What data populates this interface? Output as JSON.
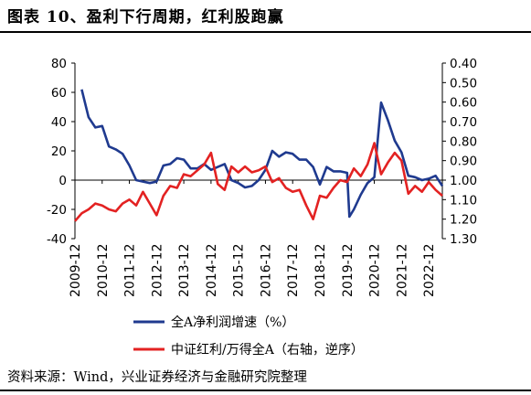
{
  "header": {
    "title": "图表 10、盈利下行周期，红利股跑赢"
  },
  "source": "资料来源：Wind，兴业证券经济与金融研究院整理",
  "chart_data": {
    "type": "line",
    "legend_position": "bottom",
    "grid": false,
    "x_axis": {
      "ticks": [
        "2009-12",
        "2010-12",
        "2011-12",
        "2012-12",
        "2013-12",
        "2014-12",
        "2015-12",
        "2016-12",
        "2017-12",
        "2018-12",
        "2019-12",
        "2020-12",
        "2021-12",
        "2022-12"
      ],
      "range": [
        "2009-12",
        "2023-06"
      ]
    },
    "left_axis": {
      "ylim": [
        -40,
        80
      ],
      "ticks": [
        -40,
        -20,
        0,
        20,
        40,
        60,
        80
      ]
    },
    "right_axis": {
      "ylim": [
        1.3,
        0.4
      ],
      "inverted": true,
      "ticks": [
        "0.40",
        "0.50",
        "0.60",
        "0.70",
        "0.80",
        "0.90",
        "1.00",
        "1.10",
        "1.20",
        "1.30"
      ]
    },
    "series": [
      {
        "name": "全A净利润增速（%）",
        "axis": "left",
        "color": "#1f3a8f",
        "points": [
          [
            "2010-03",
            62
          ],
          [
            "2010-06",
            43
          ],
          [
            "2010-09",
            36
          ],
          [
            "2010-12",
            37
          ],
          [
            "2011-03",
            23
          ],
          [
            "2011-06",
            21
          ],
          [
            "2011-09",
            18
          ],
          [
            "2011-12",
            10
          ],
          [
            "2012-03",
            0
          ],
          [
            "2012-06",
            -1
          ],
          [
            "2012-09",
            -2
          ],
          [
            "2012-12",
            -1
          ],
          [
            "2013-03",
            10
          ],
          [
            "2013-06",
            11
          ],
          [
            "2013-09",
            15
          ],
          [
            "2013-12",
            14
          ],
          [
            "2014-03",
            8
          ],
          [
            "2014-06",
            8
          ],
          [
            "2014-09",
            11
          ],
          [
            "2014-12",
            7
          ],
          [
            "2015-03",
            9
          ],
          [
            "2015-06",
            11
          ],
          [
            "2015-09",
            0
          ],
          [
            "2015-12",
            -2
          ],
          [
            "2016-03",
            -5
          ],
          [
            "2016-06",
            -4
          ],
          [
            "2016-09",
            0
          ],
          [
            "2016-12",
            7
          ],
          [
            "2017-03",
            20
          ],
          [
            "2017-06",
            16
          ],
          [
            "2017-09",
            19
          ],
          [
            "2017-12",
            18
          ],
          [
            "2018-03",
            14
          ],
          [
            "2018-06",
            14
          ],
          [
            "2018-09",
            9
          ],
          [
            "2018-12",
            -3
          ],
          [
            "2019-03",
            9
          ],
          [
            "2019-06",
            6
          ],
          [
            "2019-09",
            6
          ],
          [
            "2019-12",
            5
          ],
          [
            "2020-01",
            -25
          ],
          [
            "2020-03",
            -20
          ],
          [
            "2020-06",
            -10
          ],
          [
            "2020-09",
            -2
          ],
          [
            "2020-12",
            2
          ],
          [
            "2021-03",
            53
          ],
          [
            "2021-06",
            41
          ],
          [
            "2021-09",
            27
          ],
          [
            "2021-12",
            19
          ],
          [
            "2022-03",
            3
          ],
          [
            "2022-06",
            2
          ],
          [
            "2022-09",
            0
          ],
          [
            "2022-12",
            1
          ],
          [
            "2023-03",
            3
          ],
          [
            "2023-06",
            -4
          ]
        ]
      },
      {
        "name": "中证红利/万得全A（右轴，逆序）",
        "axis": "right",
        "color": "#e32222",
        "points": [
          [
            "2009-12",
            1.21
          ],
          [
            "2010-03",
            1.17
          ],
          [
            "2010-06",
            1.15
          ],
          [
            "2010-09",
            1.12
          ],
          [
            "2010-12",
            1.13
          ],
          [
            "2011-03",
            1.15
          ],
          [
            "2011-06",
            1.16
          ],
          [
            "2011-09",
            1.12
          ],
          [
            "2011-12",
            1.1
          ],
          [
            "2012-03",
            1.13
          ],
          [
            "2012-06",
            1.06
          ],
          [
            "2012-09",
            1.12
          ],
          [
            "2012-12",
            1.18
          ],
          [
            "2013-03",
            1.08
          ],
          [
            "2013-06",
            1.03
          ],
          [
            "2013-09",
            1.04
          ],
          [
            "2013-12",
            0.97
          ],
          [
            "2014-03",
            0.98
          ],
          [
            "2014-06",
            0.95
          ],
          [
            "2014-09",
            0.92
          ],
          [
            "2014-12",
            0.86
          ],
          [
            "2015-03",
            1.02
          ],
          [
            "2015-06",
            1.05
          ],
          [
            "2015-09",
            0.93
          ],
          [
            "2015-12",
            0.96
          ],
          [
            "2016-03",
            0.93
          ],
          [
            "2016-06",
            0.96
          ],
          [
            "2016-09",
            0.95
          ],
          [
            "2016-12",
            0.93
          ],
          [
            "2017-03",
            1.01
          ],
          [
            "2017-06",
            0.99
          ],
          [
            "2017-09",
            1.04
          ],
          [
            "2017-12",
            1.06
          ],
          [
            "2018-03",
            1.05
          ],
          [
            "2018-06",
            1.13
          ],
          [
            "2018-09",
            1.2
          ],
          [
            "2018-12",
            1.08
          ],
          [
            "2019-03",
            1.09
          ],
          [
            "2019-06",
            1.04
          ],
          [
            "2019-09",
            1.0
          ],
          [
            "2019-12",
            1.01
          ],
          [
            "2020-03",
            0.94
          ],
          [
            "2020-06",
            0.98
          ],
          [
            "2020-09",
            0.92
          ],
          [
            "2020-12",
            0.81
          ],
          [
            "2021-03",
            0.97
          ],
          [
            "2021-06",
            0.91
          ],
          [
            "2021-09",
            0.86
          ],
          [
            "2021-12",
            0.9
          ],
          [
            "2022-03",
            1.07
          ],
          [
            "2022-06",
            1.03
          ],
          [
            "2022-09",
            1.06
          ],
          [
            "2022-12",
            1.01
          ],
          [
            "2023-03",
            1.05
          ],
          [
            "2023-06",
            1.08
          ]
        ]
      }
    ]
  }
}
